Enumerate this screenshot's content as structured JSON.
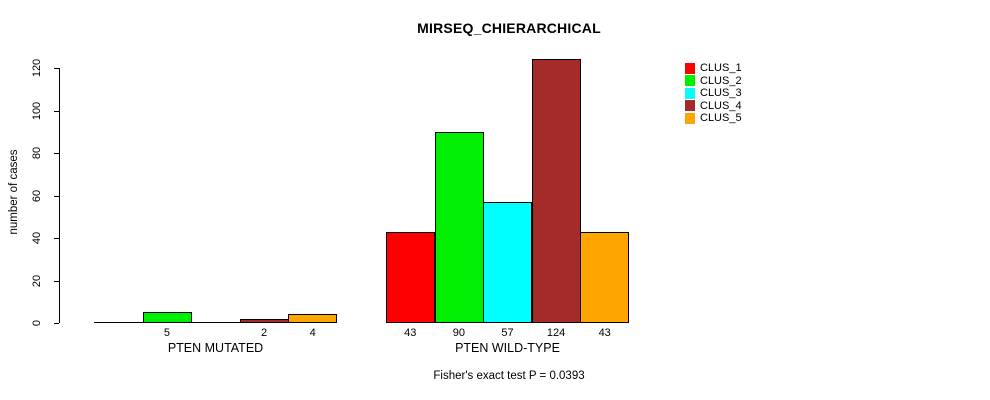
{
  "chart_data": {
    "type": "bar",
    "title": "MIRSEQ_CHIERARCHICAL",
    "ylabel": "number of cases",
    "xlabel": "",
    "categories": [
      "PTEN MUTATED",
      "PTEN WILD-TYPE"
    ],
    "series": [
      {
        "name": "CLUS_1",
        "color": "#ff0000",
        "values": [
          0,
          43
        ]
      },
      {
        "name": "CLUS_2",
        "color": "#00ee00",
        "values": [
          5,
          90
        ]
      },
      {
        "name": "CLUS_3",
        "color": "#00ffff",
        "values": [
          0,
          57
        ]
      },
      {
        "name": "CLUS_4",
        "color": "#a52a2a",
        "values": [
          2,
          124
        ]
      },
      {
        "name": "CLUS_5",
        "color": "#ffa500",
        "values": [
          4,
          43
        ]
      }
    ],
    "yticks": [
      0,
      20,
      40,
      60,
      80,
      100,
      120
    ],
    "ylim": [
      0,
      124
    ],
    "grid": false,
    "legend_position": "right",
    "bar_value_labels": {
      "PTEN MUTATED": [
        "",
        "5",
        "",
        "2",
        "4"
      ],
      "PTEN WILD-TYPE": [
        "43",
        "90",
        "57",
        "124",
        "43"
      ]
    },
    "annotation": "Fisher's exact test P = 0.0393"
  }
}
